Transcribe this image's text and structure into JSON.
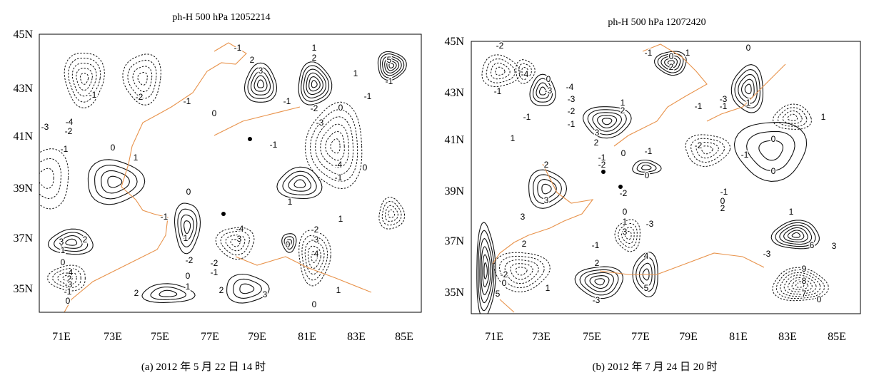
{
  "panels": [
    {
      "title": "ph-H 500 hPa   12052214",
      "caption": "(a) 2012 年 5 月 22 日 14 时",
      "lon_labels": [
        "71E",
        "73E",
        "75E",
        "77E",
        "79E",
        "81E",
        "83E",
        "85E"
      ],
      "lat_labels": [
        "45N",
        "43N",
        "41N",
        "39N",
        "37N",
        "35N"
      ],
      "contour_labels": [
        -1,
        2,
        3,
        1,
        2,
        1,
        5,
        -1,
        -1,
        -2,
        -1,
        0,
        -1,
        -2,
        0,
        -1,
        -4,
        -3,
        -2,
        -1,
        0,
        1,
        -1,
        -3,
        -4,
        0,
        -1,
        0,
        -1,
        1,
        -4,
        -3,
        1,
        1,
        2,
        3,
        1,
        0,
        -4,
        2,
        -3,
        -1,
        0,
        -2,
        0,
        -2,
        -1,
        1,
        2,
        2,
        3,
        0,
        1,
        -2,
        -3,
        -4,
        0
      ]
    },
    {
      "title": "ph-H 500 hPa   12072420",
      "caption": "(b) 2012 年 7 月 24 日 20 时",
      "lon_labels": [
        "71E",
        "73E",
        "75E",
        "77E",
        "79E",
        "81E",
        "83E",
        "85E"
      ],
      "lat_labels": [
        "45N",
        "43N",
        "41N",
        "39N",
        "37N",
        "35N"
      ],
      "contour_labels": [
        -2,
        -4,
        0,
        -1,
        -3,
        -4,
        -3,
        -2,
        -1,
        -1,
        1,
        1,
        2,
        3,
        2,
        0,
        -1,
        -1,
        0,
        -2,
        2,
        3,
        3,
        -1,
        0,
        2,
        1,
        0,
        1,
        -3,
        -1,
        -1,
        -2,
        -1,
        0,
        0,
        1,
        -2,
        0,
        1,
        3,
        -3,
        2,
        -1,
        4,
        5,
        2,
        -3,
        -2,
        0,
        1,
        5,
        -1,
        0,
        2,
        1,
        6,
        3,
        -3,
        -9,
        -8,
        -7,
        0
      ]
    }
  ]
}
